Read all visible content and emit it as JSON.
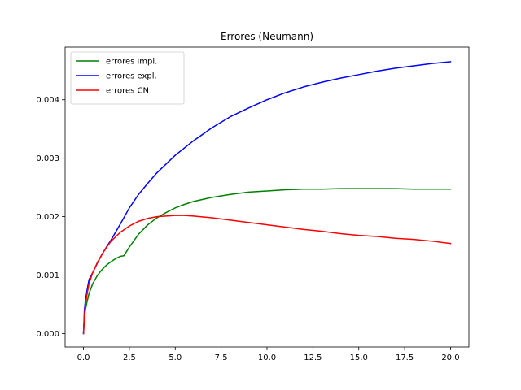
{
  "chart_data": {
    "type": "line",
    "title": "Errores (Neumann)",
    "xlabel": "",
    "ylabel": "",
    "xlim": [
      -1.0,
      21.0
    ],
    "ylim": [
      -0.00023,
      0.0049
    ],
    "x_ticks": [
      0.0,
      2.5,
      5.0,
      7.5,
      10.0,
      12.5,
      15.0,
      17.5,
      20.0
    ],
    "x_tick_labels": [
      "0.0",
      "2.5",
      "5.0",
      "7.5",
      "10.0",
      "12.5",
      "15.0",
      "17.5",
      "20.0"
    ],
    "y_ticks": [
      0.0,
      0.001,
      0.002,
      0.003,
      0.004
    ],
    "y_tick_labels": [
      "0.000",
      "0.001",
      "0.002",
      "0.003",
      "0.004"
    ],
    "grid": false,
    "legend_position": "top-left",
    "series": [
      {
        "name": "errores impl.",
        "color": "#008000",
        "x": [
          0,
          0.05,
          0.1,
          0.2,
          0.3,
          0.5,
          0.75,
          1.0,
          1.25,
          1.5,
          1.75,
          2.0,
          2.2,
          2.5,
          3.0,
          3.5,
          4.0,
          4.5,
          5.0,
          5.5,
          6.0,
          7.0,
          8.0,
          9.0,
          10.0,
          11.0,
          12.0,
          13.0,
          14.0,
          15.0,
          16.0,
          17.0,
          18.0,
          19.0,
          20.0
        ],
        "y": [
          0.0,
          0.00025,
          0.0004,
          0.00055,
          0.00068,
          0.00085,
          0.00099,
          0.00109,
          0.00117,
          0.00123,
          0.00128,
          0.00132,
          0.00133,
          0.00148,
          0.0017,
          0.00186,
          0.00198,
          0.00207,
          0.00215,
          0.00221,
          0.00226,
          0.00233,
          0.00238,
          0.00242,
          0.00244,
          0.00246,
          0.00247,
          0.00247,
          0.00248,
          0.00248,
          0.00248,
          0.00248,
          0.00247,
          0.00247,
          0.00247
        ]
      },
      {
        "name": "errores expl.",
        "color": "#0000ff",
        "x": [
          0,
          0.05,
          0.1,
          0.2,
          0.3,
          0.5,
          0.75,
          1.0,
          1.25,
          1.5,
          2.0,
          2.5,
          3.0,
          3.5,
          4.0,
          5.0,
          6.0,
          7.0,
          8.0,
          9.0,
          10.0,
          11.0,
          12.0,
          13.0,
          14.0,
          15.0,
          16.0,
          17.0,
          18.0,
          19.0,
          20.0
        ],
        "y": [
          0.0,
          0.0004,
          0.00055,
          0.00075,
          0.00092,
          0.00104,
          0.0012,
          0.00135,
          0.00148,
          0.0016,
          0.00187,
          0.00215,
          0.00238,
          0.00257,
          0.00275,
          0.00305,
          0.0033,
          0.00352,
          0.00371,
          0.00386,
          0.004,
          0.00412,
          0.00422,
          0.0043,
          0.00437,
          0.00443,
          0.00449,
          0.00454,
          0.00458,
          0.00462,
          0.00465
        ]
      },
      {
        "name": "errores CN",
        "color": "#ff0000",
        "x": [
          0,
          0.05,
          0.1,
          0.2,
          0.3,
          0.5,
          0.75,
          1.0,
          1.25,
          1.5,
          2.0,
          2.5,
          3.0,
          3.5,
          4.0,
          4.5,
          5.0,
          5.5,
          6.0,
          7.0,
          8.0,
          9.0,
          10.0,
          11.0,
          12.0,
          13.0,
          14.0,
          15.0,
          16.0,
          17.0,
          18.0,
          19.0,
          20.0
        ],
        "y": [
          0.0,
          0.0003,
          0.00048,
          0.00068,
          0.00085,
          0.00104,
          0.00121,
          0.00135,
          0.00147,
          0.00158,
          0.00173,
          0.00184,
          0.00192,
          0.00197,
          0.002,
          0.00201,
          0.00202,
          0.00202,
          0.00201,
          0.00198,
          0.00194,
          0.0019,
          0.00186,
          0.00182,
          0.00178,
          0.00175,
          0.00171,
          0.00168,
          0.00166,
          0.00163,
          0.00161,
          0.00158,
          0.00154
        ]
      }
    ]
  }
}
